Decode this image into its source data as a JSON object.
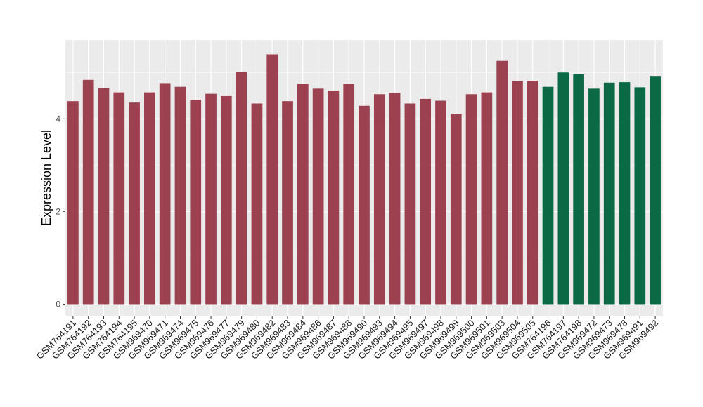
{
  "chart_data": {
    "type": "bar",
    "ylabel": "Expression Level",
    "xlabel": "",
    "ylim": [
      -0.25,
      5.7
    ],
    "yticks": [
      0,
      2,
      4
    ],
    "grid": true,
    "categories": [
      "GSM764191",
      "GSM764192",
      "GSM764193",
      "GSM764194",
      "GSM764195",
      "GSM969470",
      "GSM969471",
      "GSM969474",
      "GSM969475",
      "GSM969476",
      "GSM969477",
      "GSM969479",
      "GSM969480",
      "GSM969482",
      "GSM969483",
      "GSM969484",
      "GSM969486",
      "GSM969487",
      "GSM969488",
      "GSM969490",
      "GSM969493",
      "GSM969494",
      "GSM969495",
      "GSM969497",
      "GSM969498",
      "GSM969499",
      "GSM969500",
      "GSM969501",
      "GSM969503",
      "GSM969504",
      "GSM969505",
      "GSM764196",
      "GSM764197",
      "GSM764198",
      "GSM969472",
      "GSM969473",
      "GSM969478",
      "GSM969491",
      "GSM969492"
    ],
    "values": [
      4.38,
      4.84,
      4.66,
      4.57,
      4.35,
      4.57,
      4.77,
      4.69,
      4.41,
      4.54,
      4.49,
      5.01,
      4.33,
      5.39,
      4.38,
      4.75,
      4.65,
      4.61,
      4.75,
      4.28,
      4.53,
      4.56,
      4.33,
      4.43,
      4.39,
      4.11,
      4.53,
      4.57,
      5.25,
      4.81,
      4.82,
      4.69,
      5.0,
      4.96,
      4.65,
      4.78,
      4.79,
      4.68,
      4.91
    ],
    "groups": [
      0,
      0,
      0,
      0,
      0,
      0,
      0,
      0,
      0,
      0,
      0,
      0,
      0,
      0,
      0,
      0,
      0,
      0,
      0,
      0,
      0,
      0,
      0,
      0,
      0,
      0,
      0,
      0,
      0,
      0,
      0,
      1,
      1,
      1,
      1,
      1,
      1,
      1,
      1
    ],
    "group_colors": [
      "#9b4150",
      "#0b6a45"
    ],
    "panel_color": "#ebebeb",
    "grid_color": "#ffffff"
  }
}
